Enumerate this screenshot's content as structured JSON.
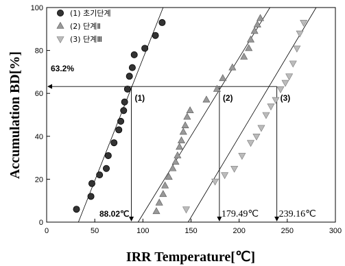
{
  "chart_data": {
    "type": "scatter",
    "xlabel": "IRR Temperature[℃]",
    "ylabel": "Accumulation BD[%]",
    "xlim": [
      0,
      300
    ],
    "ylim": [
      0,
      100
    ],
    "xticks": [
      "0",
      "50",
      "100",
      "150",
      "200",
      "250",
      "300"
    ],
    "yticks": [
      "0",
      "20",
      "40",
      "60",
      "80",
      "100"
    ],
    "legend_position": "top-left",
    "series": [
      {
        "name": "(1) 초기단계",
        "marker": "circle",
        "color": "#333333",
        "x": [
          31,
          46,
          47,
          55,
          62,
          64,
          70,
          75,
          77,
          80,
          81,
          84,
          86,
          89,
          91,
          102,
          113,
          120
        ],
        "y": [
          6,
          12,
          18,
          22,
          25,
          31,
          37,
          43,
          47,
          52,
          56,
          62,
          68,
          72,
          78,
          81,
          87,
          93
        ],
        "fit_line": {
          "x": [
            33,
            121
          ],
          "y": [
            0,
            100
          ]
        }
      },
      {
        "name": "(2) 단계Ⅱ",
        "marker": "triangle-up",
        "color": "#999999",
        "x": [
          114,
          117,
          121,
          123,
          127,
          131,
          134,
          136,
          138,
          140,
          142,
          144,
          146,
          149,
          166,
          177,
          183,
          193,
          205,
          210,
          212,
          216,
          219,
          222
        ],
        "y": [
          5,
          9,
          13,
          17,
          21,
          25,
          28,
          31,
          35,
          38,
          42,
          45,
          49,
          52,
          57,
          62,
          67,
          72,
          77,
          81,
          85,
          89,
          92,
          95
        ],
        "fit_line": {
          "x": [
            95,
            232
          ],
          "y": [
            0,
            100
          ]
        }
      },
      {
        "name": "(3) 단계Ⅲ",
        "marker": "triangle-down",
        "color": "#bbbbbb",
        "x": [
          145,
          175,
          185,
          195,
          203,
          212,
          218,
          223,
          228,
          233,
          238,
          243,
          248,
          252,
          256,
          260,
          263,
          267
        ],
        "y": [
          6,
          19,
          22,
          25,
          31,
          37,
          40,
          44,
          50,
          54,
          57,
          62,
          65,
          68,
          74,
          81,
          88,
          93
        ],
        "fit_line": {
          "x": [
            147,
            280
          ],
          "y": [
            0,
            100
          ]
        }
      }
    ],
    "reference": {
      "hline_y": 63.2,
      "hline_label": "63.2%",
      "vlines": [
        {
          "x": 88.02,
          "tag": "(1)",
          "label": "88.02℃"
        },
        {
          "x": 179.49,
          "tag": "(2)",
          "label": "179.49℃"
        },
        {
          "x": 239.16,
          "tag": "(3)",
          "label": "239.16℃"
        }
      ]
    }
  }
}
